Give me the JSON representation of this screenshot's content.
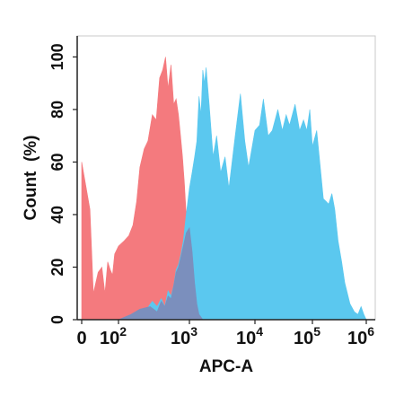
{
  "chart_data": {
    "type": "area",
    "xlabel": "APC-A",
    "ylabel": "Count  (%)",
    "ylim": [
      0,
      108
    ],
    "y_ticks": [
      "0",
      "20",
      "40",
      "60",
      "80",
      "100"
    ],
    "x_ticks": [
      {
        "label": "0",
        "exp": ""
      },
      {
        "label": "10",
        "exp": "2"
      },
      {
        "label": "10",
        "exp": "3"
      },
      {
        "label": "10",
        "exp": "4"
      },
      {
        "label": "10",
        "exp": "5"
      },
      {
        "label": "10",
        "exp": "6"
      }
    ],
    "x_scale": "biexponential (0 to 10^6)",
    "grid": false,
    "series": [
      {
        "color": "#f47a7e",
        "x": [
          0,
          5,
          10,
          20,
          30,
          40,
          50,
          60,
          70,
          80,
          100,
          120,
          140,
          160,
          180,
          200,
          230,
          260,
          300,
          340,
          380,
          420,
          460,
          500,
          550,
          600,
          650,
          700,
          750,
          800,
          850,
          900,
          1000,
          1100,
          1200,
          1300,
          1500,
          1700
        ],
        "y": [
          60,
          42,
          10,
          18,
          20,
          10,
          22,
          19,
          17,
          25,
          28,
          30,
          32,
          36,
          45,
          58,
          65,
          68,
          78,
          76,
          92,
          95,
          100,
          88,
          97,
          82,
          84,
          78,
          70,
          62,
          52,
          40,
          24,
          14,
          6,
          3,
          1,
          0
        ]
      },
      {
        "color": "#5bc8ef",
        "x": [
          90,
          130,
          200,
          250,
          300,
          350,
          400,
          450,
          500,
          550,
          600,
          650,
          700,
          760,
          820,
          900,
          1000,
          1100,
          1200,
          1300,
          1400,
          1500,
          1600,
          1700,
          1800,
          2000,
          2300,
          2600,
          3000,
          3500,
          4000,
          5000,
          6000,
          7000,
          8000,
          10000,
          12000,
          14000,
          17000,
          20000,
          25000,
          30000,
          35000,
          40000,
          50000,
          60000,
          70000,
          80000,
          90000,
          100000,
          120000,
          140000,
          160000,
          180000,
          200000,
          230000,
          260000,
          300000,
          350000,
          400000,
          500000,
          600000,
          700000,
          800000,
          900000,
          1000000
        ],
        "y": [
          0,
          0,
          2,
          4,
          7,
          5,
          8,
          5,
          11,
          9,
          13,
          19,
          21,
          25,
          30,
          40,
          50,
          56,
          62,
          68,
          85,
          78,
          95,
          90,
          96,
          82,
          62,
          70,
          56,
          62,
          50,
          70,
          86,
          68,
          58,
          72,
          74,
          84,
          70,
          72,
          80,
          72,
          78,
          74,
          82,
          72,
          76,
          72,
          80,
          66,
          72,
          58,
          46,
          45,
          44,
          48,
          42,
          30,
          22,
          14,
          6,
          3,
          2,
          5,
          2,
          0
        ]
      },
      {
        "color": "#7b8fbd",
        "x": [
          100,
          150,
          200,
          280,
          350,
          400,
          450,
          500,
          550,
          600,
          650,
          700,
          760,
          820,
          900,
          1000,
          1100,
          1200,
          1300,
          1400,
          1500,
          1600
        ],
        "y": [
          0,
          2,
          4,
          5,
          3,
          7,
          5,
          9,
          8,
          13,
          18,
          20,
          24,
          28,
          33,
          35,
          26,
          14,
          6,
          2,
          1,
          0
        ]
      }
    ]
  }
}
